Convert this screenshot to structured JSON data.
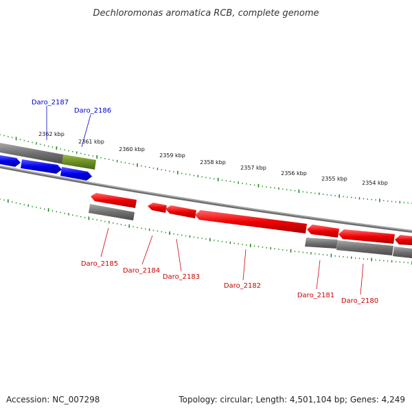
{
  "title": "Dechloromonas aromatica RCB, complete genome",
  "footer": {
    "accession": "Accession: NC_007298",
    "summary": "Topology: circular; Length: 4,501,104 bp; Genes: 4,249"
  },
  "colors": {
    "forward_gene": "#0000ee",
    "reverse_gene": "#ee0000",
    "highlight_gene": "#6b8e23",
    "cds_gray": "#707070",
    "backbone": "#8c8c8c",
    "tick": "#1a8a1a",
    "forward_label": "#0000cc",
    "reverse_label": "#cc0000"
  },
  "scale_ticks": [
    {
      "label": "2362 kbp"
    },
    {
      "label": "2361 kbp"
    },
    {
      "label": "2360 kbp"
    },
    {
      "label": "2359 kbp"
    },
    {
      "label": "2358 kbp"
    },
    {
      "label": "2357 kbp"
    },
    {
      "label": "2356 kbp"
    },
    {
      "label": "2355 kbp"
    },
    {
      "label": "2354 kbp"
    }
  ],
  "forward_genes": [
    {
      "label": "Daro_2187"
    },
    {
      "label": "Daro_2186"
    }
  ],
  "reverse_genes": [
    {
      "label": "Daro_2185"
    },
    {
      "label": "Daro_2184"
    },
    {
      "label": "Daro_2183"
    },
    {
      "label": "Daro_2182"
    },
    {
      "label": "Daro_2181"
    },
    {
      "label": "Daro_2180"
    }
  ]
}
